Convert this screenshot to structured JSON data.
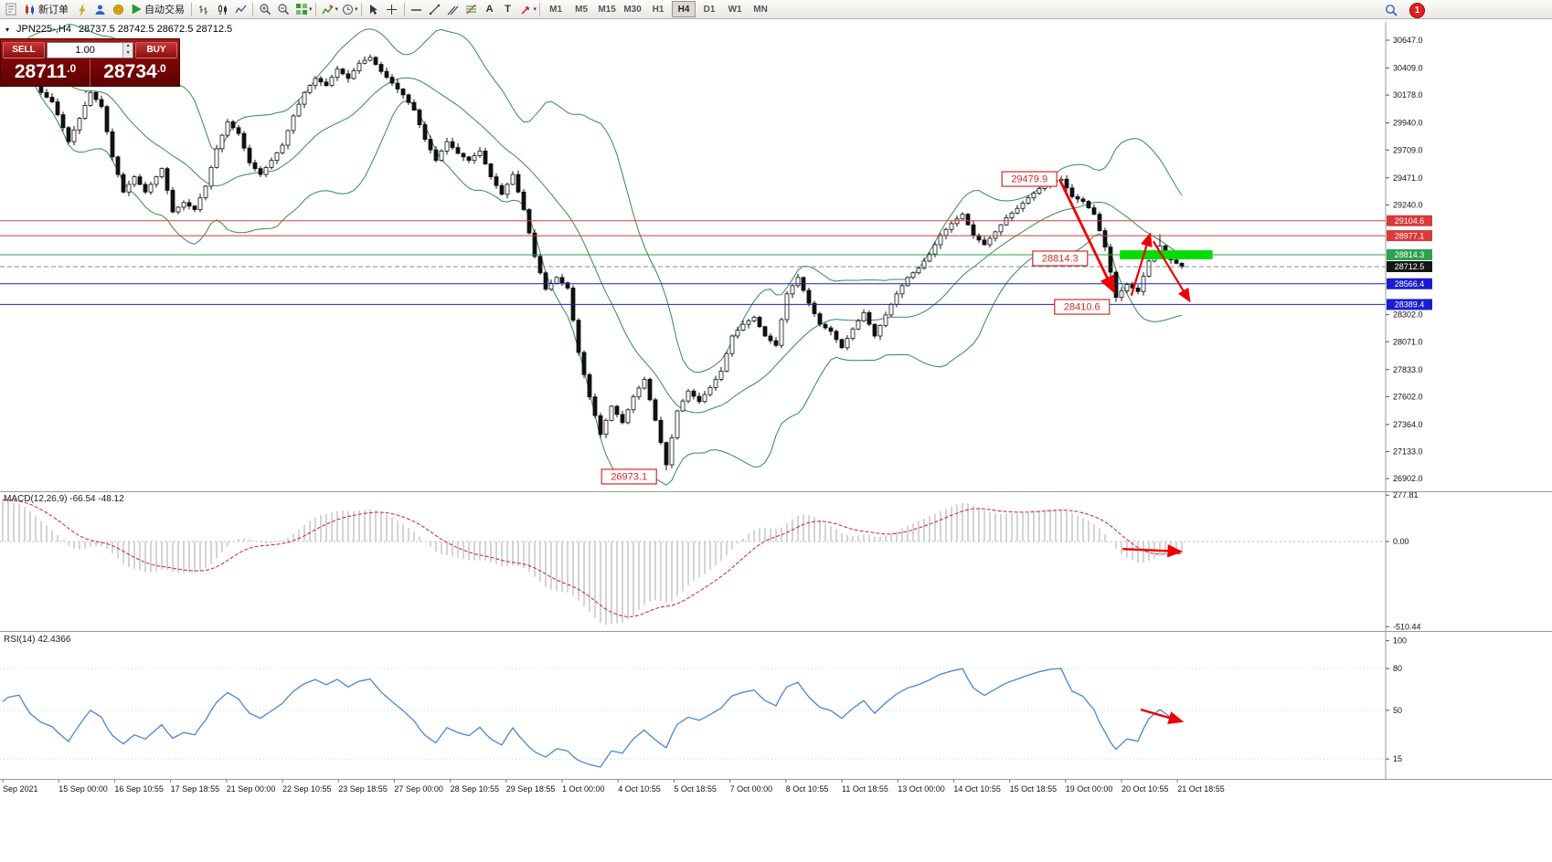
{
  "toolbar": {
    "new_order_label": "新订单",
    "auto_trading_label": "自动交易",
    "timeframes": [
      "M1",
      "M5",
      "M15",
      "M30",
      "H1",
      "H4",
      "D1",
      "W1",
      "MN"
    ],
    "active_timeframe": "H4",
    "notification_count": "1"
  },
  "chart_header": {
    "symbol": "JPN225-,H4",
    "ohlc": "28737.5 28742.5 28672.5 28712.5"
  },
  "trade_panel": {
    "sell_label": "SELL",
    "buy_label": "BUY",
    "volume": "1.00",
    "sell_price_main": "28711",
    "sell_price_frac": ".0",
    "buy_price_main": "28734",
    "buy_price_frac": ".0"
  },
  "indicators": {
    "macd_label": "MACD(12,26,9) -66.54 -48.12",
    "rsi_label": "RSI(14) 42.4366"
  },
  "chart_data": {
    "type": "candlestick",
    "symbol": "JPN225-",
    "timeframe": "H4",
    "num_candles": 216,
    "bollinger_period": 20,
    "bollinger_deviation": 2,
    "close_waypoints": [
      [
        0,
        30480
      ],
      [
        1,
        30560
      ],
      [
        3,
        30600
      ],
      [
        5,
        30350
      ],
      [
        7,
        30200
      ],
      [
        9,
        30120
      ],
      [
        11,
        29900
      ],
      [
        12,
        29780
      ],
      [
        14,
        29980
      ],
      [
        16,
        30200
      ],
      [
        18,
        30080
      ],
      [
        20,
        29650
      ],
      [
        22,
        29350
      ],
      [
        24,
        29480
      ],
      [
        26,
        29350
      ],
      [
        28,
        29480
      ],
      [
        29,
        29550
      ],
      [
        31,
        29180
      ],
      [
        33,
        29260
      ],
      [
        35,
        29200
      ],
      [
        37,
        29400
      ],
      [
        39,
        29720
      ],
      [
        41,
        29950
      ],
      [
        43,
        29850
      ],
      [
        45,
        29600
      ],
      [
        47,
        29500
      ],
      [
        49,
        29620
      ],
      [
        51,
        29750
      ],
      [
        53,
        30000
      ],
      [
        55,
        30200
      ],
      [
        57,
        30320
      ],
      [
        59,
        30260
      ],
      [
        61,
        30400
      ],
      [
        63,
        30320
      ],
      [
        65,
        30450
      ],
      [
        67,
        30500
      ],
      [
        69,
        30380
      ],
      [
        71,
        30280
      ],
      [
        73,
        30180
      ],
      [
        75,
        30050
      ],
      [
        77,
        29800
      ],
      [
        79,
        29620
      ],
      [
        81,
        29780
      ],
      [
        83,
        29680
      ],
      [
        85,
        29620
      ],
      [
        87,
        29700
      ],
      [
        89,
        29480
      ],
      [
        91,
        29330
      ],
      [
        93,
        29500
      ],
      [
        95,
        29200
      ],
      [
        97,
        28800
      ],
      [
        99,
        28520
      ],
      [
        101,
        28620
      ],
      [
        103,
        28530
      ],
      [
        105,
        27980
      ],
      [
        107,
        27600
      ],
      [
        109,
        27280
      ],
      [
        111,
        27520
      ],
      [
        113,
        27380
      ],
      [
        115,
        27600
      ],
      [
        117,
        27750
      ],
      [
        119,
        27400
      ],
      [
        121,
        27020
      ],
      [
        123,
        27480
      ],
      [
        125,
        27650
      ],
      [
        127,
        27560
      ],
      [
        129,
        27680
      ],
      [
        131,
        27820
      ],
      [
        133,
        28120
      ],
      [
        135,
        28220
      ],
      [
        137,
        28280
      ],
      [
        139,
        28120
      ],
      [
        141,
        28040
      ],
      [
        143,
        28480
      ],
      [
        145,
        28620
      ],
      [
        147,
        28400
      ],
      [
        149,
        28220
      ],
      [
        151,
        28160
      ],
      [
        153,
        28020
      ],
      [
        155,
        28180
      ],
      [
        157,
        28320
      ],
      [
        159,
        28120
      ],
      [
        161,
        28300
      ],
      [
        163,
        28480
      ],
      [
        165,
        28620
      ],
      [
        167,
        28700
      ],
      [
        169,
        28820
      ],
      [
        171,
        28980
      ],
      [
        173,
        29080
      ],
      [
        175,
        29160
      ],
      [
        177,
        28980
      ],
      [
        179,
        28900
      ],
      [
        181,
        29010
      ],
      [
        183,
        29130
      ],
      [
        185,
        29210
      ],
      [
        187,
        29300
      ],
      [
        189,
        29380
      ],
      [
        191,
        29440
      ],
      [
        193,
        29460
      ],
      [
        195,
        29310
      ],
      [
        197,
        29270
      ],
      [
        199,
        29160
      ],
      [
        201,
        28880
      ],
      [
        203,
        28450
      ],
      [
        205,
        28560
      ],
      [
        207,
        28500
      ],
      [
        209,
        28760
      ],
      [
        211,
        28890
      ],
      [
        213,
        28770
      ],
      [
        215,
        28712.5
      ]
    ],
    "spikes": [
      {
        "i": 3,
        "high": 30647.0
      },
      {
        "i": 121,
        "low": 26973.1
      },
      {
        "i": 193,
        "high": 29479.9
      },
      {
        "i": 203,
        "low": 28410.6
      },
      {
        "i": 211,
        "high": 28990
      }
    ],
    "hlines": [
      {
        "price": 29104.6,
        "label": "29104.6",
        "color": "#d93a3a",
        "tag_color": "#d93a3a",
        "dashed": false
      },
      {
        "price": 28977.1,
        "label": "28977.1",
        "color": "#d93a3a",
        "tag_color": "#d93a3a",
        "dashed": false
      },
      {
        "price": 28814.3,
        "label": "28814.3",
        "color": "#2ba24d",
        "tag_color": "#2ba24d",
        "dashed": false
      },
      {
        "price": 28712.5,
        "label": "28712.5",
        "color": "#8a8a8a",
        "tag_color": "#151515",
        "dashed": true
      },
      {
        "price": 28566.4,
        "label": "28566.4",
        "color": "#1c1ccf",
        "tag_color": "#1c1ccf",
        "dashed": false
      },
      {
        "price": 28389.4,
        "label": "28389.4",
        "color": "#1c1ccf",
        "tag_color": "#1c1ccf",
        "dashed": false
      }
    ],
    "price_ticks": [
      30647.0,
      30409.0,
      30178.0,
      29940.0,
      29709.0,
      29471.0,
      29240.0,
      28302.0,
      28071.0,
      27833.0,
      27602.0,
      27364.0,
      27133.0,
      26902.0
    ],
    "annotations": [
      {
        "text": "29479.9",
        "i": 187.2,
        "price": 29461
      },
      {
        "text": "28814.3",
        "i": 192.8,
        "price": 28783
      },
      {
        "text": "28410.6",
        "i": 196.8,
        "price": 28369
      },
      {
        "text": "26973.1",
        "i": 114.2,
        "price": 26919
      }
    ],
    "highlight_zone": {
      "i_start": 203.7,
      "i_end": 220.6,
      "price_top": 28852,
      "price_bottom": 28776,
      "color": "#00dd00"
    },
    "arrows_main": [
      {
        "from_i": 192.8,
        "from_p": 29450,
        "to_i": 202.6,
        "to_p": 28500,
        "width": 2.8
      },
      {
        "from_i": 205.8,
        "from_p": 28465,
        "to_i": 209.2,
        "to_p": 28990,
        "width": 2.2
      },
      {
        "from_i": 209.8,
        "from_p": 28930,
        "to_i": 216.4,
        "to_p": 28420,
        "width": 2.2
      }
    ],
    "macd": {
      "ticks": [
        {
          "label": "277.81",
          "value": 277.81
        },
        {
          "label": "0.00",
          "value": 0
        },
        {
          "label": "-510.44",
          "value": -510.44
        }
      ],
      "arrow": {
        "from_i": 204.2,
        "from_v": -45,
        "to_i": 214.8,
        "to_v": -60
      }
    },
    "rsi": {
      "ticks": [
        {
          "label": "100",
          "value": 100
        },
        {
          "label": "80",
          "value": 80
        },
        {
          "label": "50",
          "value": 50
        },
        {
          "label": "15",
          "value": 15
        }
      ],
      "levels": [
        80,
        50,
        15
      ],
      "arrow": {
        "from_i": 207.5,
        "from_v": 50.5,
        "to_i": 215,
        "to_v": 42
      }
    },
    "time_labels": [
      "Sep 2021",
      "15 Sep 00:00",
      "16 Sep 10:55",
      "17 Sep 18:55",
      "21 Sep 00:00",
      "22 Sep 10:55",
      "23 Sep 18:55",
      "27 Sep 00:00",
      "28 Sep 10:55",
      "29 Sep 18:55",
      "1 Oct 00:00",
      "4 Oct 10:55",
      "5 Oct 18:55",
      "7 Oct 00:00",
      "8 Oct 10:55",
      "11 Oct 18:55",
      "13 Oct 00:00",
      "14 Oct 10:55",
      "15 Oct 18:55",
      "19 Oct 00:00",
      "20 Oct 10:55",
      "21 Oct 18:55"
    ]
  }
}
